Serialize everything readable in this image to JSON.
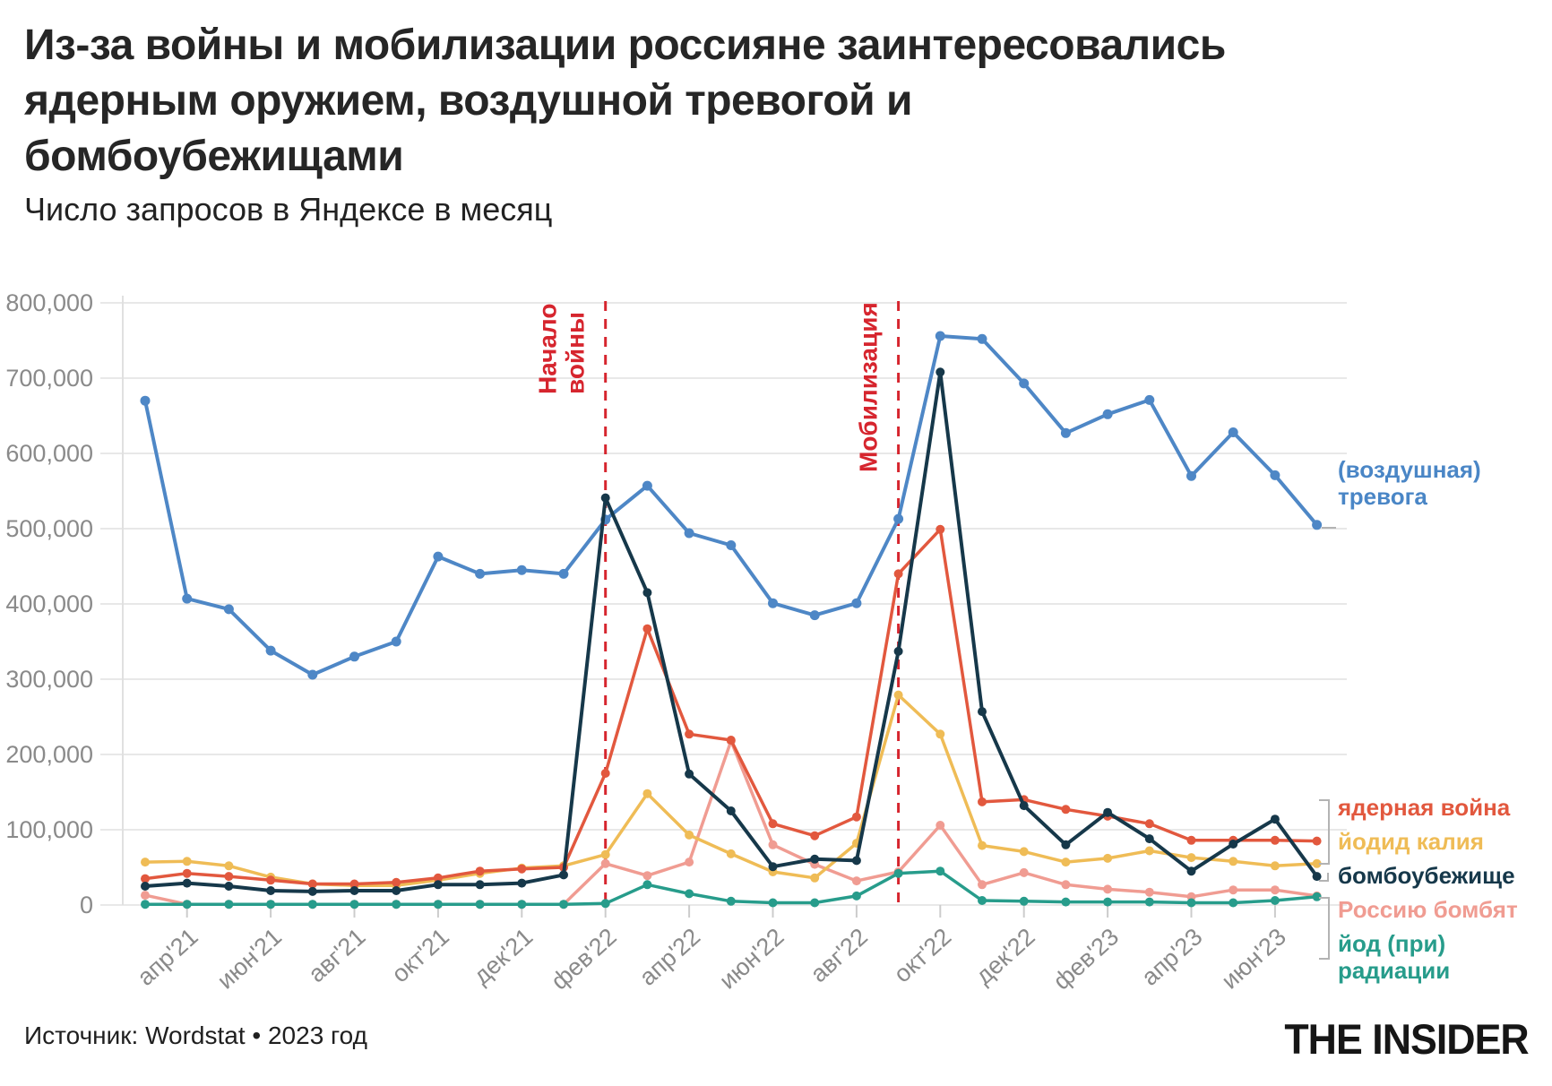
{
  "header": {
    "title_lines": [
      "Из-за войны и мобилизации россияне заинтересовались",
      "ядерным оружием, воздушной тревогой и",
      "бомбоубежищами"
    ],
    "subtitle": "Число запросов в Яндексе в месяц"
  },
  "chart_data": {
    "type": "line",
    "title": "Число запросов в Яндексе в месяц",
    "xlabel": "",
    "ylabel": "",
    "ylim": [
      0,
      800000
    ],
    "grid": true,
    "legend_position": "right",
    "months": [
      "мар'21",
      "апр'21",
      "май'21",
      "июн'21",
      "июл'21",
      "авг'21",
      "сен'21",
      "окт'21",
      "ноя'21",
      "дек'21",
      "янв'22",
      "фев'22",
      "мар'22",
      "апр'22",
      "май'22",
      "июн'22",
      "июл'22",
      "авг'22",
      "сен'22",
      "окт'22",
      "ноя'22",
      "дек'22",
      "янв'23",
      "фев'23",
      "мар'23",
      "апр'23",
      "май'23",
      "июн'23",
      "июл'23"
    ],
    "x_ticks": [
      {
        "label": "апр'21",
        "month_index": 1
      },
      {
        "label": "июн'21",
        "month_index": 3
      },
      {
        "label": "авг'21",
        "month_index": 5
      },
      {
        "label": "окт'21",
        "month_index": 7
      },
      {
        "label": "дек'21",
        "month_index": 9
      },
      {
        "label": "фев'22",
        "month_index": 11
      },
      {
        "label": "апр'22",
        "month_index": 13
      },
      {
        "label": "июн'22",
        "month_index": 15
      },
      {
        "label": "авг'22",
        "month_index": 17
      },
      {
        "label": "окт'22",
        "month_index": 19
      },
      {
        "label": "дек'22",
        "month_index": 21
      },
      {
        "label": "фев'23",
        "month_index": 23
      },
      {
        "label": "апр'23",
        "month_index": 25
      },
      {
        "label": "июн'23",
        "month_index": 27
      }
    ],
    "y_ticks": [
      {
        "value": 0,
        "label": "0"
      },
      {
        "value": 100000,
        "label": "100,000"
      },
      {
        "value": 200000,
        "label": "200,000"
      },
      {
        "value": 300000,
        "label": "300,000"
      },
      {
        "value": 400000,
        "label": "400,000"
      },
      {
        "value": 500000,
        "label": "500,000"
      },
      {
        "value": 600000,
        "label": "600,000"
      },
      {
        "value": 700000,
        "label": "700,000"
      },
      {
        "value": 800000,
        "label": "800,000"
      }
    ],
    "series": [
      {
        "name": "(воздушная) тревога",
        "color": "#4E87C6",
        "values": [
          670000,
          407000,
          393000,
          338000,
          306000,
          330000,
          350000,
          463000,
          440000,
          445000,
          440000,
          512000,
          557000,
          494000,
          478000,
          401000,
          385000,
          401000,
          513000,
          756000,
          752000,
          693000,
          627000,
          652000,
          671000,
          570000,
          628000,
          571000,
          505000
        ]
      },
      {
        "name": "Россию бомбят",
        "color": "#F09C92",
        "values": [
          13000,
          1000,
          1000,
          1000,
          1000,
          1000,
          1000,
          1000,
          1000,
          1000,
          1000,
          55000,
          39000,
          57000,
          218000,
          80000,
          54000,
          32000,
          44000,
          106000,
          27000,
          43000,
          27000,
          21000,
          17000,
          11000,
          20000,
          20000,
          12000
        ]
      },
      {
        "name": "йодид калия",
        "color": "#EFBC56",
        "values": [
          57000,
          58000,
          52000,
          37000,
          28000,
          26000,
          26000,
          33000,
          42000,
          49000,
          52000,
          67000,
          148000,
          93000,
          68000,
          44000,
          36000,
          82000,
          279000,
          227000,
          79000,
          71000,
          57000,
          62000,
          72000,
          63000,
          58000,
          52000,
          55000
        ]
      },
      {
        "name": "ядерная война",
        "color": "#E2583E",
        "values": [
          35000,
          42000,
          38000,
          33000,
          28000,
          28000,
          30000,
          36000,
          45000,
          48000,
          50000,
          175000,
          367000,
          227000,
          219000,
          108000,
          92000,
          117000,
          440000,
          499000,
          137000,
          140000,
          127000,
          118000,
          108000,
          86000,
          86000,
          86000,
          85000
        ]
      },
      {
        "name": "йод (при) радиации",
        "color": "#279C8B",
        "values": [
          1000,
          1000,
          1000,
          1000,
          1000,
          1000,
          1000,
          1000,
          1000,
          1000,
          1000,
          2000,
          27000,
          15000,
          5000,
          3000,
          3000,
          12000,
          42000,
          45000,
          6000,
          5000,
          4000,
          4000,
          4000,
          3000,
          3000,
          6000,
          11000
        ]
      },
      {
        "name": "бомбоубежище",
        "color": "#16384A",
        "values": [
          25000,
          29000,
          25000,
          19000,
          18000,
          19000,
          19000,
          27000,
          27000,
          29000,
          40000,
          541000,
          415000,
          174000,
          125000,
          51000,
          61000,
          59000,
          337000,
          708000,
          257000,
          132000,
          80000,
          123000,
          88000,
          45000,
          81000,
          114000,
          38000
        ]
      }
    ],
    "annotations": [
      {
        "label": "Начало войны",
        "label_lines": [
          "Начало",
          "войны"
        ],
        "month_index": 11,
        "color": "#D6252E"
      },
      {
        "label": "Мобилизация",
        "label_lines": [
          "Мобилизация"
        ],
        "month_index": 18,
        "color": "#D6252E"
      }
    ],
    "legend": [
      {
        "lines": [
          "(воздушная)",
          "тревога"
        ],
        "color": "#4A86C6"
      },
      {
        "lines": [
          "ядерная война"
        ],
        "color": "#E2583E"
      },
      {
        "lines": [
          "йодид калия"
        ],
        "color": "#EFBC56"
      },
      {
        "lines": [
          "бомбоубежище"
        ],
        "color": "#16384A"
      },
      {
        "lines": [
          "Россию бомбят"
        ],
        "color": "#F09C92"
      },
      {
        "lines": [
          "йод (при)",
          "радиации"
        ],
        "color": "#279C8B"
      }
    ]
  },
  "footer": {
    "source": "Источник: Wordstat • 2023 год",
    "logo": "THE INSIDER"
  }
}
